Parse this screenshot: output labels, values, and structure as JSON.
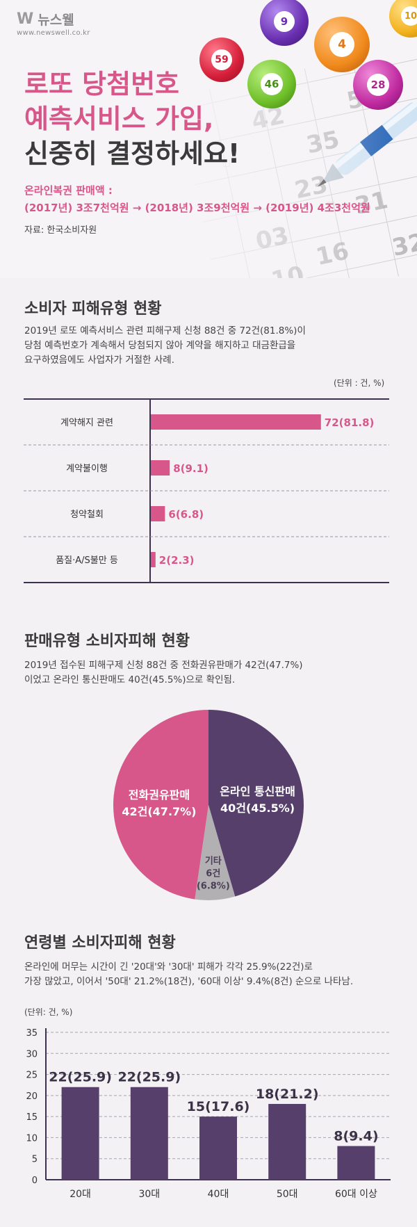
{
  "header": {
    "logo": "뉴스웰",
    "url": "www.newswell.co.kr",
    "title_line1": "로또 당첨번호",
    "title_line2": "예측서비스 가입,",
    "title_line3": "신중히 결정하세요!",
    "sales_label": "온라인복권 판매액 :",
    "sales_detail": "(2017년) 3조7천억원 → (2018년) 3조9천억원 → (2019년) 4조3천억원",
    "source": "자료: 한국소비자원",
    "balls": [
      {
        "number": "59",
        "color": "#d61f3a"
      },
      {
        "number": "9",
        "color": "#6a2fb0"
      },
      {
        "number": "4",
        "color": "#f08a1c"
      },
      {
        "number": "46",
        "color": "#6fbf2a"
      },
      {
        "number": "28",
        "color": "#c02aa0"
      },
      {
        "number": "10",
        "color": "#f2b21e"
      }
    ]
  },
  "section1": {
    "title": "소비자 피해유형 현황",
    "desc_lines": [
      "2019년 로또 예측서비스 관련 피해구제 신청 88건 중 72건(81.8%)이",
      "당첨 예측번호가 계속해서 당첨되지 않아 계약을 해지하고 대금환급을",
      "요구하였음에도 사업자가 거절한 사례."
    ],
    "unit": "(단위 : 건, %)"
  },
  "section2": {
    "title": "판매유형 소비자피해 현황",
    "desc_lines": [
      "2019년 접수된 피해구제 신청 88건 중 전화권유판매가 42건(47.7%)",
      "이었고 온라인 통신판매도 40건(45.5%)으로 확인됨."
    ]
  },
  "section3": {
    "title": "연령별 소비자피해 현황",
    "desc_lines": [
      "온라인에 머무는 시간이 긴 '20대'와 '30대' 피해가 각각 25.9%(22건)로",
      "가장 많았고, 이어서 '50대' 21.2%(18건), '60대 이상' 9.4%(8건) 순으로 나타남."
    ],
    "unit": "(단위: 건, %)"
  },
  "chart_data": [
    {
      "type": "bar",
      "orientation": "horizontal",
      "categories": [
        "계약해지 관련",
        "계약불이행",
        "청약철회",
        "품질·A/S불만 등"
      ],
      "values": [
        72,
        8,
        6,
        2
      ],
      "labels": [
        "72(81.8)",
        "8(9.1)",
        "6(6.8)",
        "2(2.3)"
      ],
      "xlim": [
        0,
        100
      ],
      "xticks": [
        "0",
        "10",
        "20",
        "30",
        "40",
        "50",
        "60",
        "70",
        "80",
        "90",
        "100"
      ],
      "color": "#d8578a"
    },
    {
      "type": "pie",
      "slices": [
        {
          "label": "온라인 통신판매",
          "value_label": "40건(45.5%)",
          "value": 45.5,
          "color": "#563f6b"
        },
        {
          "label": "기타",
          "value_label": "6건",
          "pct_label": "(6.8%)",
          "value": 6.8,
          "color": "#b2b0b3"
        },
        {
          "label": "전화권유판매",
          "value_label": "42건(47.7%)",
          "value": 47.7,
          "color": "#d8578a"
        }
      ]
    },
    {
      "type": "bar",
      "orientation": "vertical",
      "categories": [
        "20대",
        "30대",
        "40대",
        "50대",
        "60대 이상"
      ],
      "values": [
        22,
        22,
        15,
        18,
        8
      ],
      "labels": [
        "22(25.9)",
        "22(25.9)",
        "15(17.6)",
        "18(21.2)",
        "8(9.4)"
      ],
      "ylim": [
        0,
        35
      ],
      "yticks": [
        "0",
        "5",
        "10",
        "15",
        "20",
        "25",
        "30",
        "35"
      ],
      "color": "#563f6b"
    }
  ]
}
